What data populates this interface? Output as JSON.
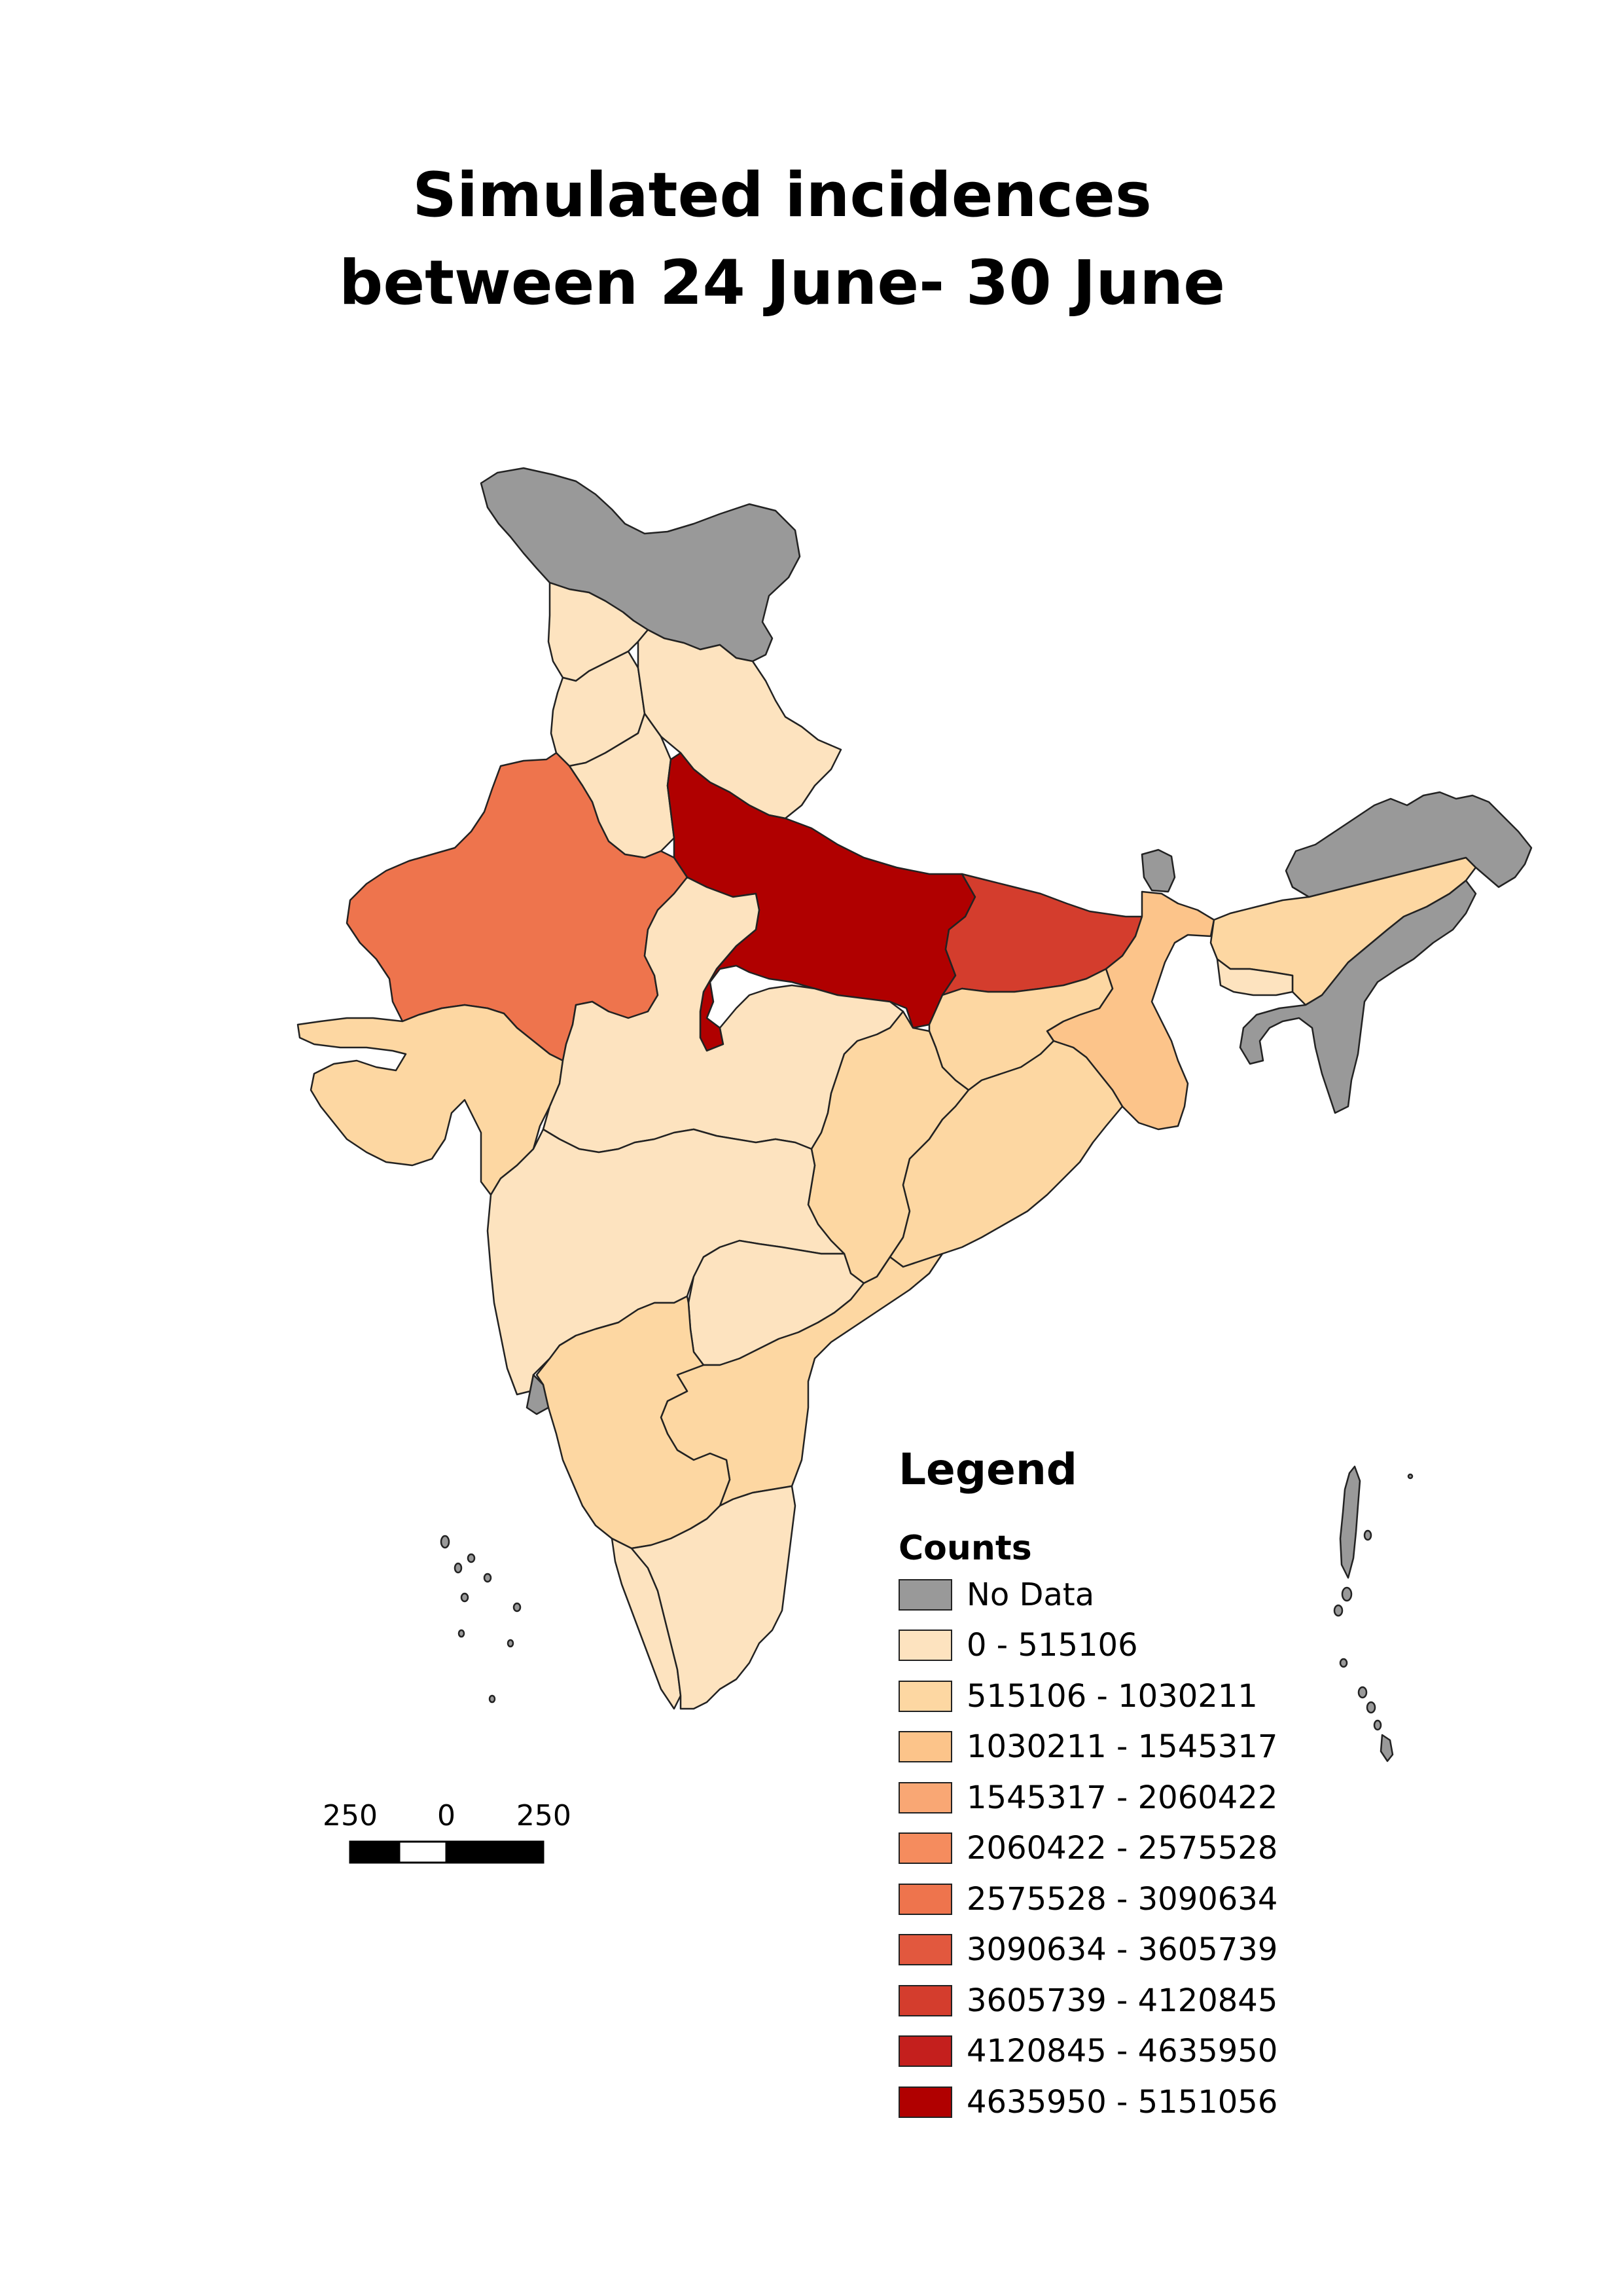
{
  "title": {
    "line1": "Simulated incidences",
    "line2": "between 24 June- 30 June"
  },
  "legend": {
    "heading": "Legend",
    "subheading": "Counts",
    "classes": [
      {
        "label": "No Data",
        "color": "#999999"
      },
      {
        "label": "0 - 515106",
        "color": "#fde3bf"
      },
      {
        "label": "515106 - 1030211",
        "color": "#fdd7a2"
      },
      {
        "label": "1030211 - 1545317",
        "color": "#fcc48a"
      },
      {
        "label": "1545317 - 2060422",
        "color": "#f9a774"
      },
      {
        "label": "2060422 - 2575528",
        "color": "#f58c5e"
      },
      {
        "label": "2575528 - 3090634",
        "color": "#ee744d"
      },
      {
        "label": "3090634 - 3605739",
        "color": "#e2583e"
      },
      {
        "label": "3605739 - 4120845",
        "color": "#d43d2d"
      },
      {
        "label": "4120845 - 4635950",
        "color": "#c41f1d"
      },
      {
        "label": "4635950 - 5151056",
        "color": "#b00000"
      }
    ]
  },
  "scalebar": {
    "labels": [
      "250",
      "0",
      "250 km"
    ]
  },
  "regions": [
    {
      "name": "Jammu and Kashmir",
      "class": 0
    },
    {
      "name": "Himachal Pradesh",
      "class": 1
    },
    {
      "name": "Punjab",
      "class": 1
    },
    {
      "name": "Haryana",
      "class": 1
    },
    {
      "name": "Uttarakhand",
      "class": 1
    },
    {
      "name": "Rajasthan",
      "class": 6
    },
    {
      "name": "Uttar Pradesh",
      "class": 10
    },
    {
      "name": "Bihar",
      "class": 8
    },
    {
      "name": "Sikkim",
      "class": 0
    },
    {
      "name": "West Bengal",
      "class": 3
    },
    {
      "name": "Assam",
      "class": 2
    },
    {
      "name": "Arunachal Pradesh",
      "class": 0
    },
    {
      "name": "Meghalaya",
      "class": 1
    },
    {
      "name": "North East states",
      "class": 0
    },
    {
      "name": "Gujarat",
      "class": 2
    },
    {
      "name": "Madhya Pradesh",
      "class": 1
    },
    {
      "name": "Jharkhand",
      "class": 2
    },
    {
      "name": "Chhattisgarh",
      "class": 2
    },
    {
      "name": "Odisha",
      "class": 2
    },
    {
      "name": "Maharashtra",
      "class": 1
    },
    {
      "name": "Telangana",
      "class": 1
    },
    {
      "name": "Andhra Pradesh",
      "class": 2
    },
    {
      "name": "Karnataka",
      "class": 2
    },
    {
      "name": "Goa",
      "class": 0
    },
    {
      "name": "Kerala",
      "class": 1
    },
    {
      "name": "Tamil Nadu",
      "class": 1
    },
    {
      "name": "Andaman and Nicobar Islands",
      "class": 0
    },
    {
      "name": "Lakshadweep",
      "class": 0
    }
  ]
}
